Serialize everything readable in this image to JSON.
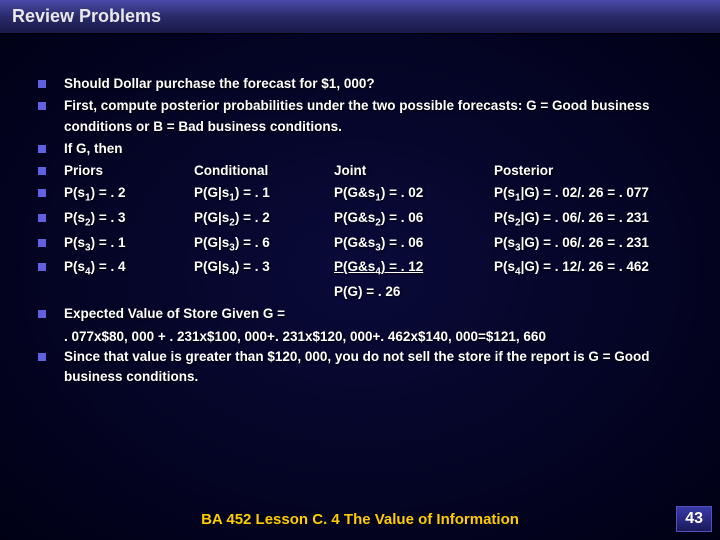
{
  "title": "Review Problems",
  "footer": "BA 452  Lesson C. 4 The Value of Information",
  "page": "43",
  "bullets": [
    "Should Dollar purchase the forecast for $1, 000?",
    "First, compute posterior probabilities under the two possible forecasts: G = Good business conditions or B = Bad business conditions.",
    "If G, then"
  ],
  "table": {
    "hdr": {
      "c1": "Priors",
      "c2": "Conditional",
      "c3": "Joint",
      "c4": "Posterior"
    },
    "rows": [
      {
        "c1a": "P(s",
        "s1": "1",
        "c1b": ") = . 2",
        "c2a": "P(G|s",
        "s2": "1",
        "c2b": ") = . 1",
        "c3a": "P(G&s",
        "s3": "1",
        "c3b": ") = . 02",
        "c4a": "P(s",
        "s4": "1",
        "c4b": "|G) = . 02/. 26 = . 077"
      },
      {
        "c1a": "P(s",
        "s1": "2",
        "c1b": ") = . 3",
        "c2a": "P(G|s",
        "s2": "2",
        "c2b": ") = . 2",
        "c3a": "P(G&s",
        "s3": "2",
        "c3b": ") = . 06",
        "c4a": "P(s",
        "s4": "2",
        "c4b": "|G) = . 06/. 26 = . 231"
      },
      {
        "c1a": "P(s",
        "s1": "3",
        "c1b": ") = . 1",
        "c2a": "P(G|s",
        "s2": "3",
        "c2b": ") = . 6",
        "c3a": "P(G&s",
        "s3": "3",
        "c3b": ") = . 06",
        "c4a": "P(s",
        "s4": "3",
        "c4b": "|G) = . 06/. 26 = . 231"
      },
      {
        "c1a": "P(s",
        "s1": "4",
        "c1b": ") = . 4",
        "c2a": "P(G|s",
        "s2": "4",
        "c2b": ") = . 3",
        "c3a": "P(G&s",
        "s3": "4",
        "c3b": ") = . 12",
        "c4a": "P(s",
        "s4": "4",
        "c4b": "|G) = . 12/. 26 = . 462",
        "u": true
      }
    ],
    "total": "P(G) = . 26"
  },
  "bullets2": [
    "Expected Value of Store Given G =",
    "Since that value is greater than $120, 000, you do not sell the store if the report is G = Good business conditions."
  ],
  "ev_calc": ". 077x$80, 000 + . 231x$100, 000+. 231x$120, 000+. 462x$140, 000=$121, 660",
  "colors": {
    "bullet": "#6060e0",
    "footer": "#ffcc00"
  }
}
